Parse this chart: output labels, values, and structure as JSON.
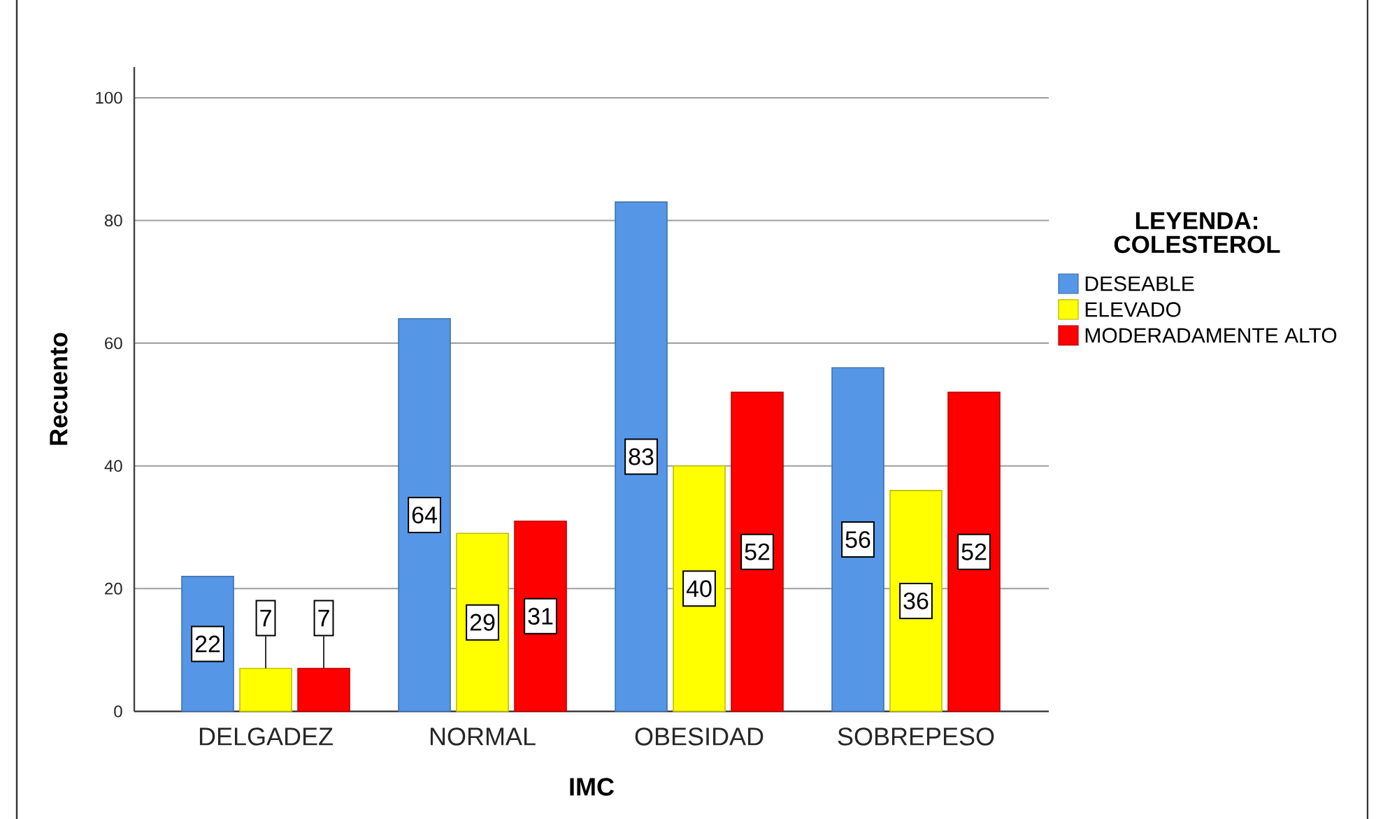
{
  "chart_data": {
    "type": "bar",
    "xlabel": "IMC",
    "ylabel": "Recuento",
    "legend_title": "LEYENDA: COLESTEROL",
    "categories": [
      "DELGADEZ",
      "NORMAL",
      "OBESIDAD",
      "SOBREPESO"
    ],
    "series": [
      {
        "name": "DESEABLE",
        "color": "#5596e6",
        "values": [
          22,
          64,
          83,
          56
        ]
      },
      {
        "name": "ELEVADO",
        "color": "#ffff00",
        "values": [
          7,
          29,
          40,
          36
        ]
      },
      {
        "name": "MODERADAMENTE ALTO",
        "color": "#ff0000",
        "values": [
          7,
          31,
          52,
          52
        ]
      }
    ],
    "ylim": [
      0,
      105
    ],
    "yticks": [
      0,
      20,
      40,
      60,
      80,
      100
    ],
    "grid": "y",
    "legend": "right",
    "data_labels": true
  }
}
